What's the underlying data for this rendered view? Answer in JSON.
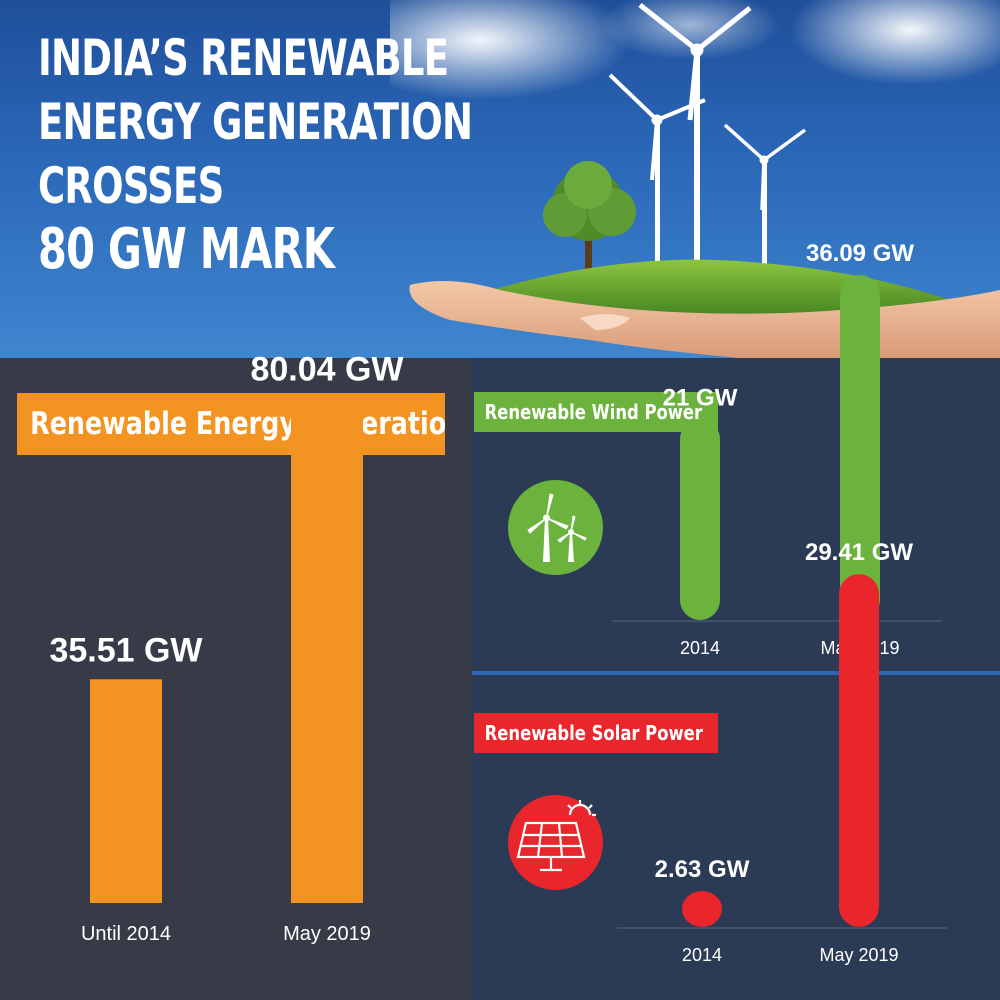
{
  "hero": {
    "title_lines": [
      "INDIA’S RENEWABLE",
      "ENERGY GENERATION",
      "CROSSES",
      "80 GW MARK"
    ]
  },
  "colors": {
    "orange": "#f39322",
    "green": "#6cb33e",
    "red": "#e8262c",
    "dark_panel": "#363b47",
    "navy_panel": "#2b3a55",
    "sky": "#2b68b8"
  },
  "icons": [
    "wind-turbine-icon",
    "solar-panel-icon"
  ],
  "chart_data": [
    {
      "type": "bar",
      "title": "Renewable Energy Generation",
      "categories": [
        "Until 2014",
        "May 2019"
      ],
      "values": [
        35.51,
        80.04
      ],
      "data_labels": [
        "35.51 GW",
        "80.04 GW"
      ],
      "unit": "GW",
      "ylim": [
        0,
        100
      ],
      "grid": false,
      "color": "#f39322"
    },
    {
      "type": "bar",
      "title": "Renewable Wind Power",
      "categories": [
        "2014",
        "May 2019"
      ],
      "values": [
        21,
        36.09
      ],
      "data_labels": [
        "21 GW",
        "36.09 GW"
      ],
      "unit": "GW",
      "ylim": [
        0,
        45
      ],
      "grid": false,
      "color": "#6cb33e"
    },
    {
      "type": "bar",
      "title": "Renewable Solar Power",
      "categories": [
        "2014",
        "May 2019"
      ],
      "values": [
        2.63,
        29.41
      ],
      "data_labels": [
        "2.63 GW",
        "29.41 GW"
      ],
      "unit": "GW",
      "ylim": [
        0,
        35
      ],
      "grid": false,
      "color": "#e8262c"
    }
  ]
}
